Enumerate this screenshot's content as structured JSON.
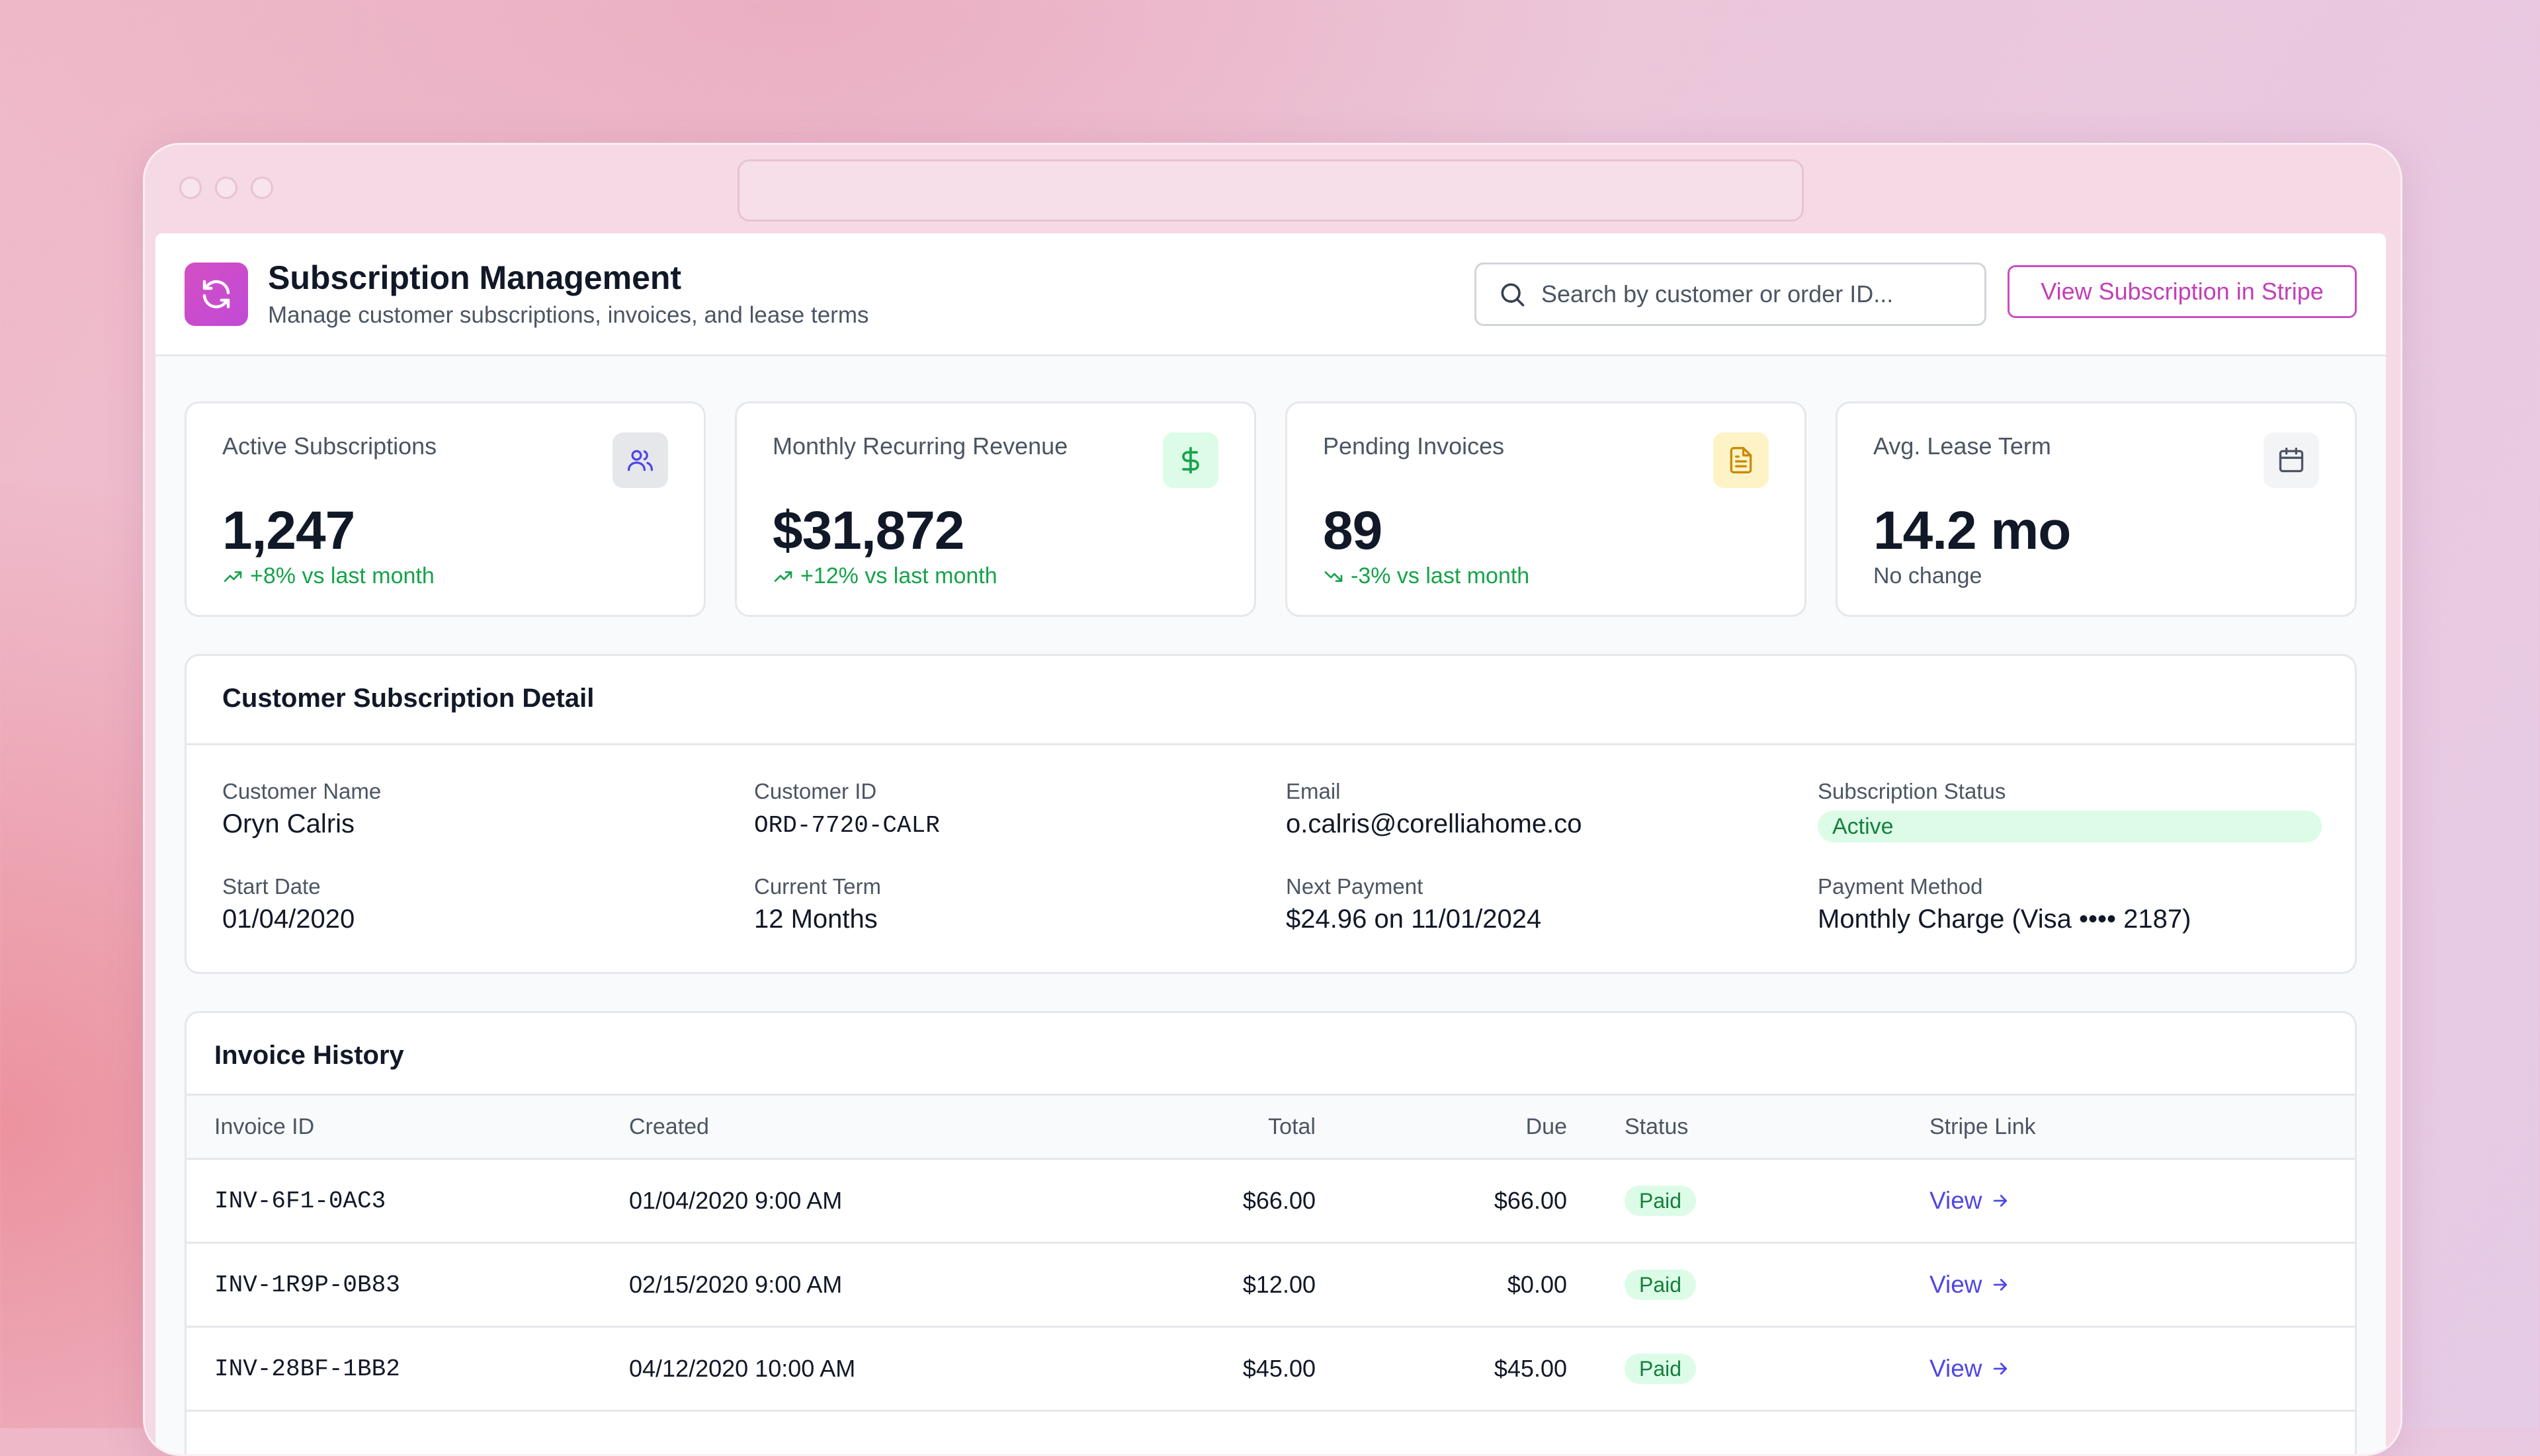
{
  "app": {
    "title": "Subscription Management",
    "subtitle": "Manage customer subscriptions, invoices, and lease terms",
    "brand_color": "#c84fc4"
  },
  "search": {
    "placeholder": "Search by customer or order ID..."
  },
  "actions": {
    "stripe_button": "View Subscription in Stripe"
  },
  "stats": [
    {
      "label": "Active Subscriptions",
      "value": "1,247",
      "trend": "+8% vs last month",
      "trend_dir": "up",
      "icon": "users-icon"
    },
    {
      "label": "Monthly Recurring Revenue",
      "value": "$31,872",
      "trend": "+12% vs last month",
      "trend_dir": "up",
      "icon": "dollar-icon"
    },
    {
      "label": "Pending Invoices",
      "value": "89",
      "trend": "-3% vs last month",
      "trend_dir": "down",
      "icon": "document-icon"
    },
    {
      "label": "Avg. Lease Term",
      "value": "14.2 mo",
      "trend": "No change",
      "trend_dir": "none",
      "icon": "calendar-icon"
    }
  ],
  "detail": {
    "title": "Customer Subscription Detail",
    "fields": {
      "customer_name": {
        "label": "Customer Name",
        "value": "Oryn Calris"
      },
      "customer_id": {
        "label": "Customer ID",
        "value": "ORD-7720-CALR"
      },
      "email": {
        "label": "Email",
        "value": "o.calris@corelliahome.co"
      },
      "status": {
        "label": "Subscription Status",
        "value": "Active"
      },
      "start_date": {
        "label": "Start Date",
        "value": "01/04/2020"
      },
      "current_term": {
        "label": "Current Term",
        "value": "12 Months"
      },
      "next_payment": {
        "label": "Next Payment",
        "value": "$24.96 on 11/01/2024"
      },
      "payment_method": {
        "label": "Payment Method",
        "value": "Monthly Charge (Visa •••• 2187)"
      }
    }
  },
  "invoices": {
    "title": "Invoice History",
    "columns": [
      "Invoice ID",
      "Created",
      "Total",
      "Due",
      "Status",
      "Stripe Link"
    ],
    "rows": [
      {
        "id": "INV-6F1-0AC3",
        "created": "01/04/2020 9:00 AM",
        "total": "$66.00",
        "due": "$66.00",
        "status": "Paid",
        "link": "View"
      },
      {
        "id": "INV-1R9P-0B83",
        "created": "02/15/2020 9:00 AM",
        "total": "$12.00",
        "due": "$0.00",
        "status": "Paid",
        "link": "View"
      },
      {
        "id": "INV-28BF-1BB2",
        "created": "04/12/2020 10:00 AM",
        "total": "$45.00",
        "due": "$45.00",
        "status": "Paid",
        "link": "View"
      }
    ]
  }
}
